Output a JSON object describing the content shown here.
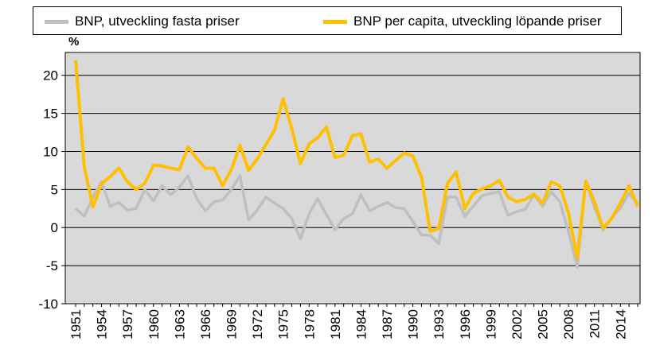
{
  "chart_data": {
    "type": "line",
    "title": "",
    "ylabel": "%",
    "xlabel": "",
    "ylim": [
      -10,
      23
    ],
    "yticks": [
      -10,
      -5,
      0,
      5,
      10,
      15,
      20
    ],
    "grid": true,
    "legend_position": "top",
    "x": [
      1951,
      1952,
      1953,
      1954,
      1955,
      1956,
      1957,
      1958,
      1959,
      1960,
      1961,
      1962,
      1963,
      1964,
      1965,
      1966,
      1967,
      1968,
      1969,
      1970,
      1971,
      1972,
      1973,
      1974,
      1975,
      1976,
      1977,
      1978,
      1979,
      1980,
      1981,
      1982,
      1983,
      1984,
      1985,
      1986,
      1987,
      1988,
      1989,
      1990,
      1991,
      1992,
      1993,
      1994,
      1995,
      1996,
      1997,
      1998,
      1999,
      2000,
      2001,
      2002,
      2003,
      2004,
      2005,
      2006,
      2007,
      2008,
      2009,
      2010,
      2011,
      2012,
      2013,
      2014,
      2015,
      2016
    ],
    "xticks": [
      "1951",
      "1954",
      "1957",
      "1960",
      "1963",
      "1966",
      "1969",
      "1972",
      "1975",
      "1978",
      "1981",
      "1984",
      "1987",
      "1990",
      "1993",
      "1996",
      "1999",
      "2002",
      "2005",
      "2008",
      "2011",
      "2014"
    ],
    "series": [
      {
        "name": "BNP, utveckling fasta priser",
        "color": "#bfbfbf",
        "values": [
          2.5,
          1.5,
          4.0,
          6.0,
          2.8,
          3.3,
          2.3,
          2.5,
          5.0,
          3.5,
          5.5,
          4.3,
          5.3,
          6.8,
          3.8,
          2.2,
          3.4,
          3.6,
          5.0,
          6.8,
          1.0,
          2.3,
          4.0,
          3.2,
          2.5,
          1.2,
          -1.5,
          1.8,
          3.8,
          1.7,
          -0.3,
          1.2,
          1.8,
          4.3,
          2.2,
          2.8,
          3.3,
          2.6,
          2.5,
          0.8,
          -1.0,
          -1.0,
          -2.1,
          4.0,
          4.0,
          1.5,
          2.8,
          4.2,
          4.5,
          4.7,
          1.6,
          2.1,
          2.4,
          4.3,
          2.8,
          4.7,
          3.4,
          -0.6,
          -5.2,
          6.0,
          2.7,
          -0.3,
          1.3,
          2.6,
          4.5,
          3.2
        ]
      },
      {
        "name": "BNP per capita, utveckling löpande priser",
        "color": "#ffc000",
        "values": [
          22.0,
          8.0,
          2.7,
          5.8,
          6.7,
          7.8,
          6.0,
          5.0,
          5.8,
          8.2,
          8.1,
          7.8,
          7.6,
          10.6,
          9.1,
          7.8,
          7.8,
          5.5,
          7.6,
          10.8,
          7.5,
          9.0,
          10.9,
          12.8,
          16.9,
          13.0,
          8.4,
          11.0,
          11.8,
          13.2,
          9.2,
          9.5,
          12.1,
          12.3,
          8.6,
          9.0,
          7.8,
          8.8,
          9.8,
          9.4,
          6.6,
          -0.5,
          -0.1,
          5.8,
          7.3,
          2.5,
          4.5,
          5.1,
          5.5,
          6.2,
          4.0,
          3.4,
          3.7,
          4.4,
          3.2,
          6.0,
          5.5,
          1.9,
          -4.0,
          6.1,
          3.4,
          -0.1,
          1.2,
          3.2,
          5.5,
          2.8
        ]
      }
    ]
  }
}
